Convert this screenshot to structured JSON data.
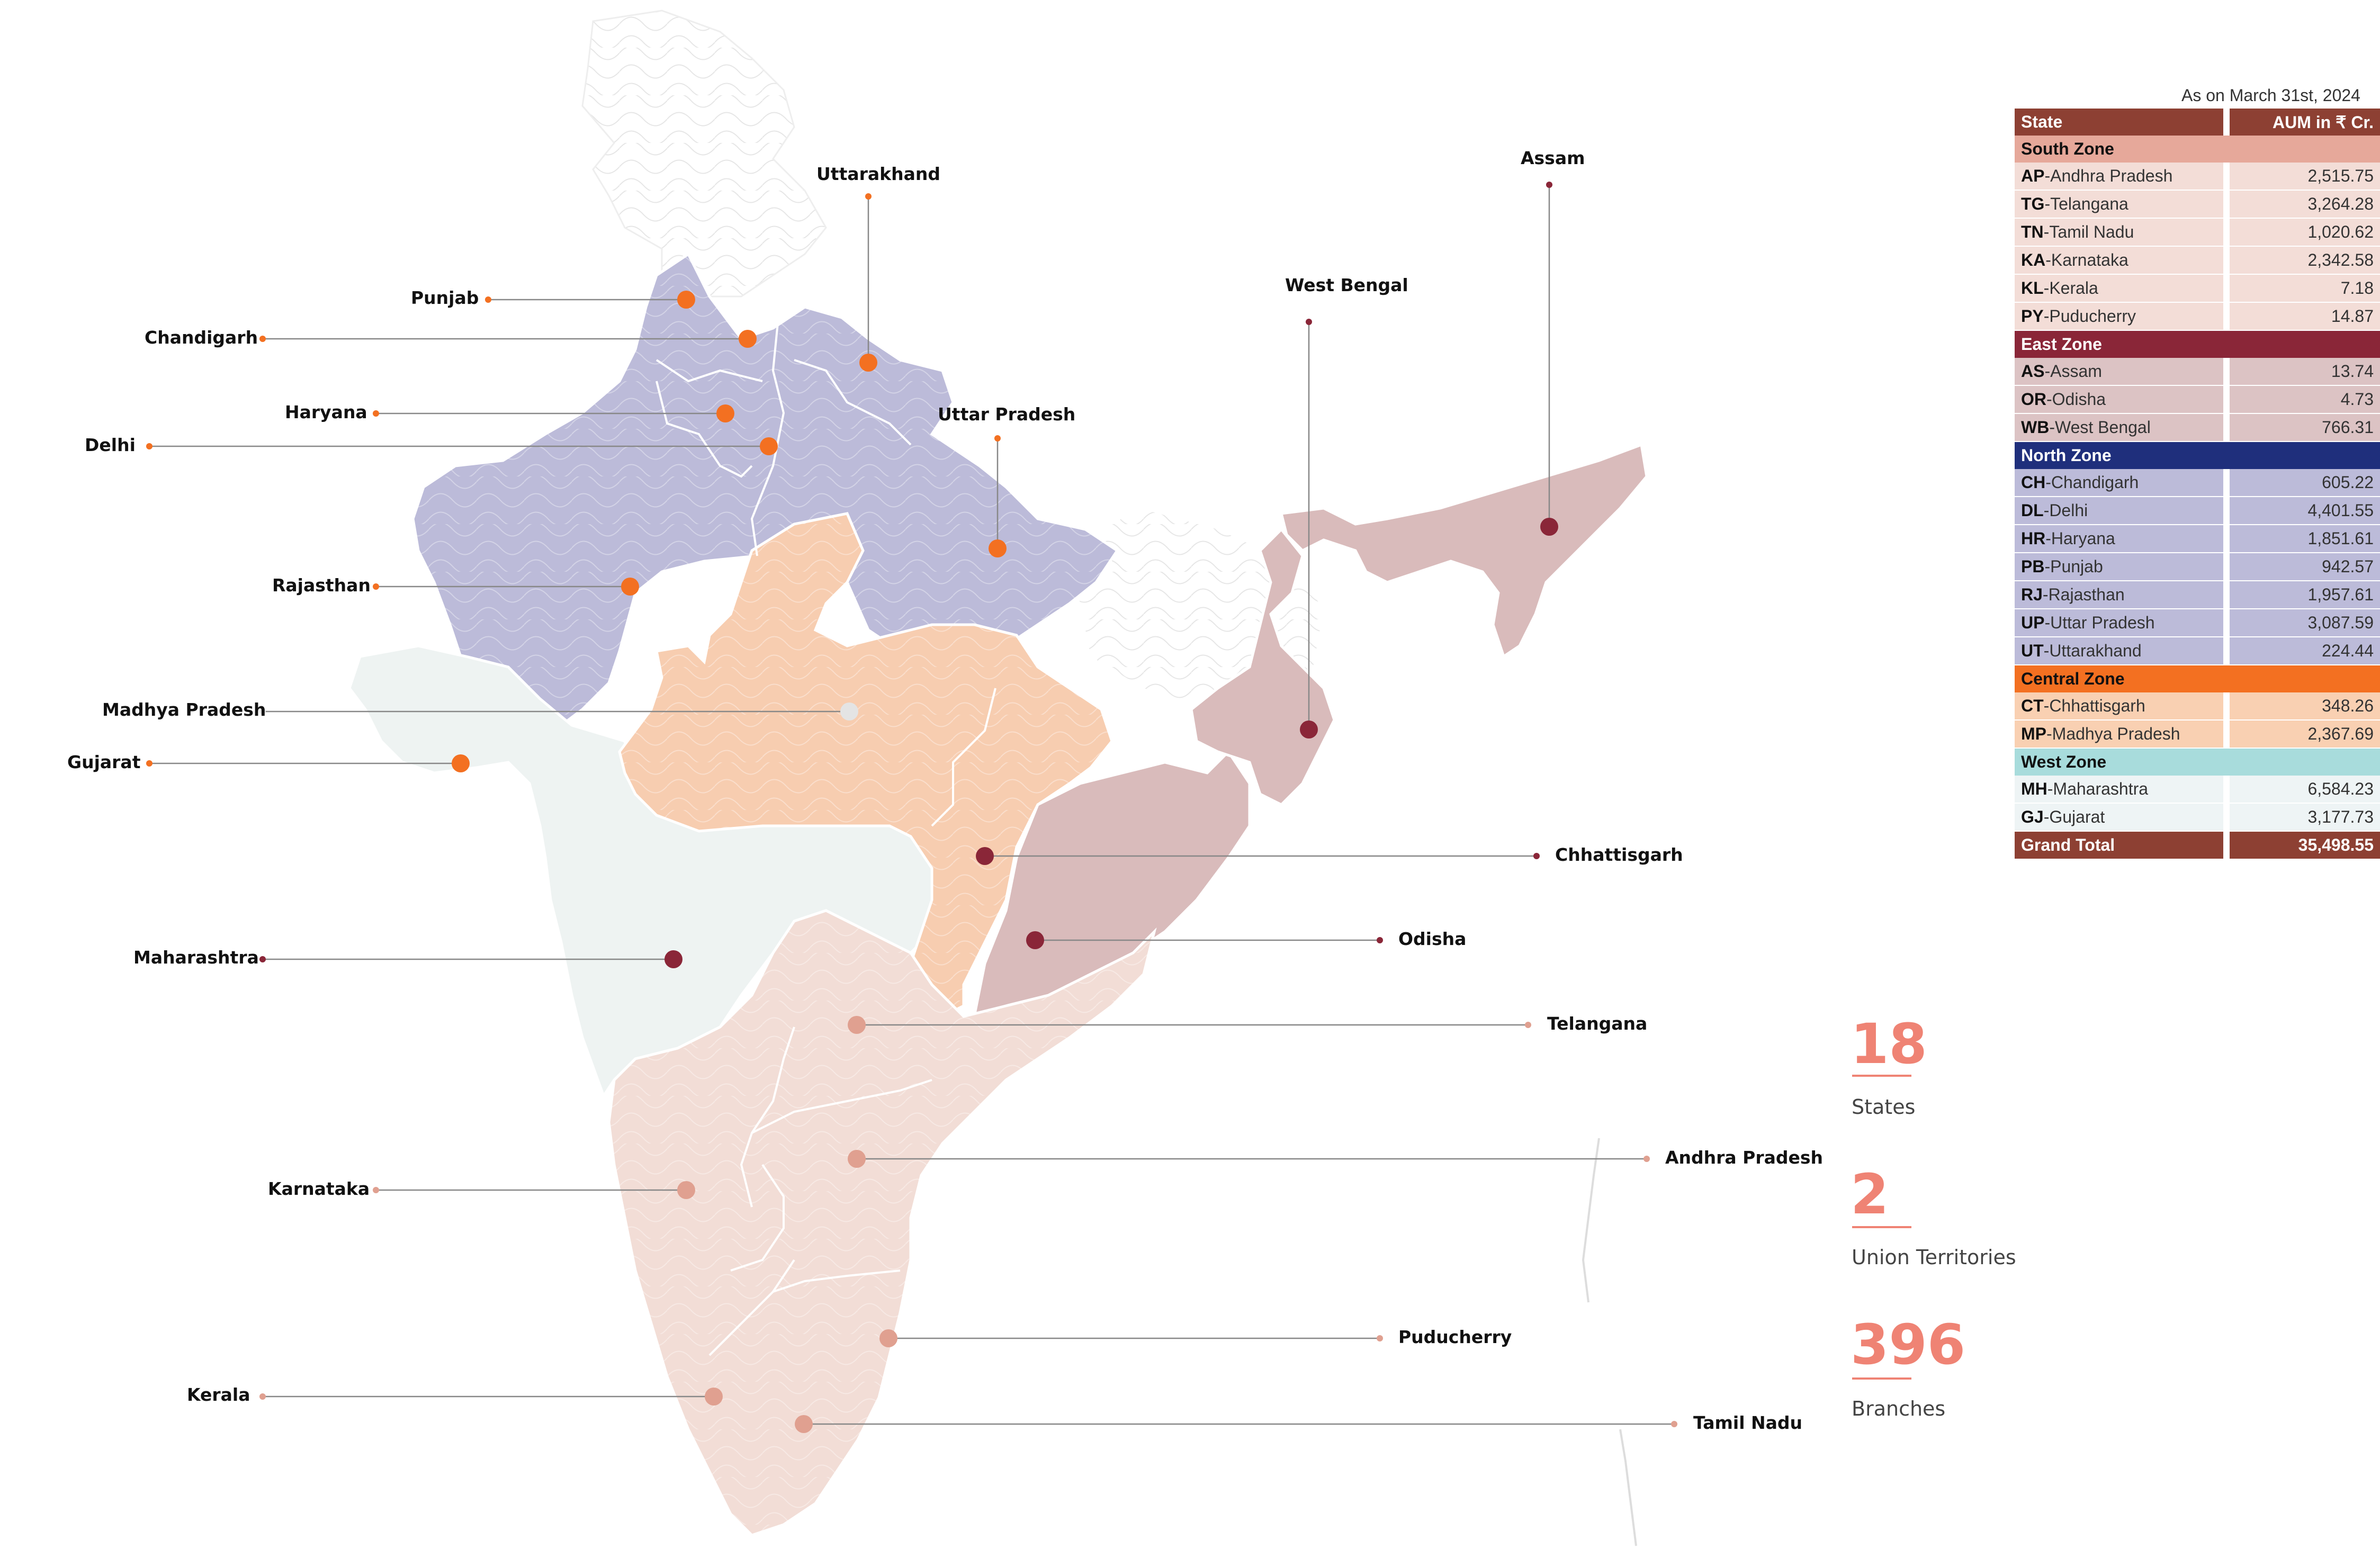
{
  "date_note": "As on March 31st, 2024",
  "colors": {
    "north": "#bcbbd9",
    "central": "#f7cdb0",
    "east": "#d9bbbb",
    "south": "#f2ddd6",
    "west": "#eef3f2",
    "marker_north": "#f37021",
    "marker_east": "#8a2638",
    "marker_south": "#e0a090",
    "marker_central": "#e4e4e4",
    "header": "#8d4033"
  },
  "labels": [
    {
      "name": "Punjab",
      "zone": "north"
    },
    {
      "name": "Chandigarh",
      "zone": "north"
    },
    {
      "name": "Haryana",
      "zone": "north"
    },
    {
      "name": "Delhi",
      "zone": "north"
    },
    {
      "name": "Rajasthan",
      "zone": "north"
    },
    {
      "name": "Madhya Pradesh",
      "zone": "central"
    },
    {
      "name": "Gujarat",
      "zone": "west"
    },
    {
      "name": "Maharashtra",
      "zone": "west"
    },
    {
      "name": "Karnataka",
      "zone": "south"
    },
    {
      "name": "Kerala",
      "zone": "south"
    },
    {
      "name": "Uttarakhand",
      "zone": "north"
    },
    {
      "name": "Uttar Pradesh",
      "zone": "north"
    },
    {
      "name": "West Bengal",
      "zone": "east"
    },
    {
      "name": "Assam",
      "zone": "east"
    },
    {
      "name": "Chhattisgarh",
      "zone": "central"
    },
    {
      "name": "Odisha",
      "zone": "east"
    },
    {
      "name": "Telangana",
      "zone": "south"
    },
    {
      "name": "Andhra Pradesh",
      "zone": "south"
    },
    {
      "name": "Puducherry",
      "zone": "south"
    },
    {
      "name": "Tamil Nadu",
      "zone": "south"
    }
  ],
  "table": {
    "col_state": "State",
    "col_aum": "AUM in ₹ Cr.",
    "zones": [
      {
        "name": "South Zone",
        "bg": "#e6a89a",
        "fg": "#111111",
        "row_bg": "#f3ddd7",
        "rows": [
          {
            "code": "AP",
            "name": "-Andhra Pradesh",
            "value": "2,515.75"
          },
          {
            "code": "TG",
            "name": "-Telangana",
            "value": "3,264.28"
          },
          {
            "code": "TN",
            "name": "-Tamil Nadu",
            "value": "1,020.62"
          },
          {
            "code": "KA",
            "name": "-Karnataka",
            "value": "2,342.58"
          },
          {
            "code": "KL",
            "name": "-Kerala",
            "value": "7.18"
          },
          {
            "code": "PY",
            "name": "-Puducherry",
            "value": "14.87"
          }
        ]
      },
      {
        "name": "East Zone",
        "bg": "#8a2638",
        "fg": "#ffffff",
        "row_bg": "#dcc3c4",
        "rows": [
          {
            "code": "AS",
            "name": "-Assam",
            "value": "13.74"
          },
          {
            "code": "OR",
            "name": "-Odisha",
            "value": "4.73"
          },
          {
            "code": "WB",
            "name": "-West Bengal",
            "value": "766.31"
          }
        ]
      },
      {
        "name": "North Zone",
        "bg": "#1f2f7c",
        "fg": "#ffffff",
        "row_bg": "#bcbbd9",
        "rows": [
          {
            "code": "CH",
            "name": "-Chandigarh",
            "value": "605.22"
          },
          {
            "code": "DL",
            "name": "-Delhi",
            "value": "4,401.55"
          },
          {
            "code": "HR",
            "name": "-Haryana",
            "value": "1,851.61"
          },
          {
            "code": "PB",
            "name": "-Punjab",
            "value": "942.57"
          },
          {
            "code": "RJ",
            "name": "-Rajasthan",
            "value": "1,957.61"
          },
          {
            "code": "UP",
            "name": "-Uttar Pradesh",
            "value": "3,087.59"
          },
          {
            "code": "UT",
            "name": "-Uttarakhand",
            "value": "224.44"
          }
        ]
      },
      {
        "name": "Central Zone",
        "bg": "#f37021",
        "fg": "#111111",
        "row_bg": "#f9d0b2",
        "rows": [
          {
            "code": "CT",
            "name": "-Chhattisgarh",
            "value": "348.26"
          },
          {
            "code": "MP",
            "name": "-Madhya Pradesh",
            "value": "2,367.69"
          }
        ]
      },
      {
        "name": "West Zone",
        "bg": "#a8dcdc",
        "fg": "#111111",
        "row_bg": "#eef4f5",
        "rows": [
          {
            "code": "MH",
            "name": "-Maharashtra",
            "value": "6,584.23"
          },
          {
            "code": "GJ",
            "name": "-Gujarat",
            "value": "3,177.73"
          }
        ]
      }
    ],
    "total_label": "Grand Total",
    "total_value": "35,498.55"
  },
  "stats": [
    {
      "value": "18",
      "label": "States"
    },
    {
      "value": "2",
      "label": "Union Territories"
    },
    {
      "value": "396",
      "label": "Branches"
    }
  ]
}
